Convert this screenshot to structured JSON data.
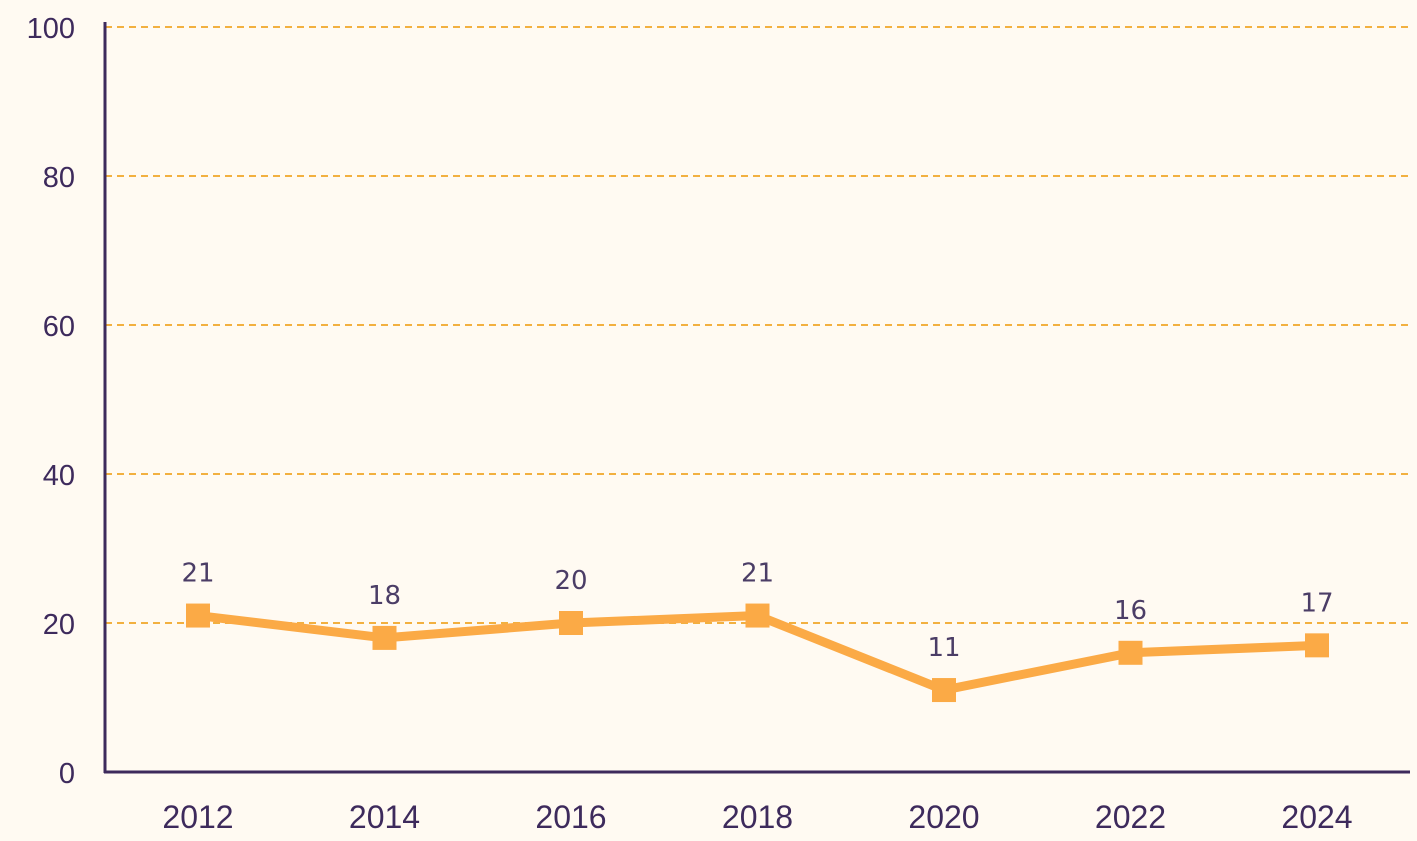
{
  "chart_data": {
    "type": "line",
    "title": "",
    "xlabel": "",
    "ylabel": "",
    "categories": [
      "2012",
      "2014",
      "2016",
      "2018",
      "2020",
      "2022",
      "2024"
    ],
    "series": [
      {
        "values": [
          21,
          18,
          20,
          21,
          11,
          16,
          17
        ],
        "color": "#fbaa46"
      }
    ],
    "ylim": [
      0,
      100
    ],
    "yticks": [
      0,
      20,
      40,
      60,
      80,
      100
    ],
    "grid": true,
    "gridColor": "#f2b040",
    "axisColor": "#3d2a5c",
    "textColor": "#3d2a5c",
    "data_labels": true,
    "legend": "none"
  }
}
